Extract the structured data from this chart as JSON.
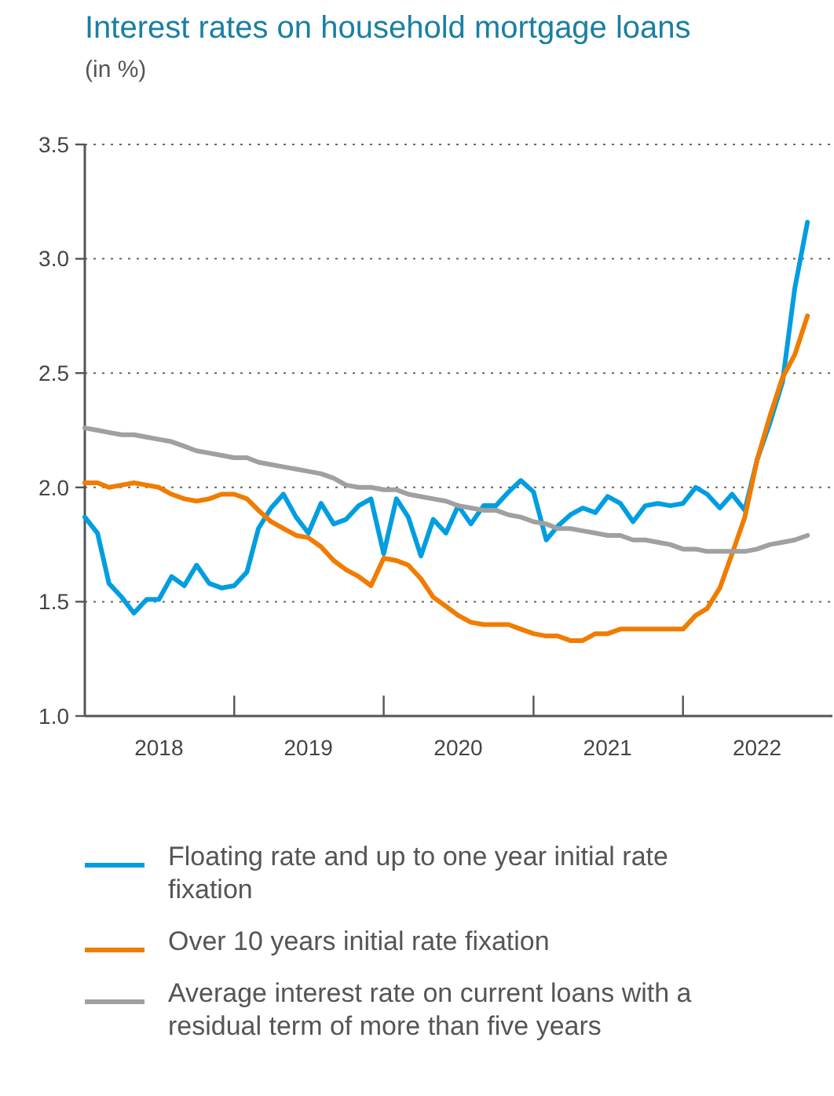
{
  "chart_data": {
    "type": "line",
    "title": "Interest rates on household mortgage loans",
    "subtitle": "(in %)",
    "x": [
      "2018-01",
      "2018-02",
      "2018-03",
      "2018-04",
      "2018-05",
      "2018-06",
      "2018-07",
      "2018-08",
      "2018-09",
      "2018-10",
      "2018-11",
      "2018-12",
      "2019-01",
      "2019-02",
      "2019-03",
      "2019-04",
      "2019-05",
      "2019-06",
      "2019-07",
      "2019-08",
      "2019-09",
      "2019-10",
      "2019-11",
      "2019-12",
      "2020-01",
      "2020-02",
      "2020-03",
      "2020-04",
      "2020-05",
      "2020-06",
      "2020-07",
      "2020-08",
      "2020-09",
      "2020-10",
      "2020-11",
      "2020-12",
      "2021-01",
      "2021-02",
      "2021-03",
      "2021-04",
      "2021-05",
      "2021-06",
      "2021-07",
      "2021-08",
      "2021-09",
      "2021-10",
      "2021-11",
      "2021-12",
      "2022-01",
      "2022-02",
      "2022-03",
      "2022-04",
      "2022-05",
      "2022-06",
      "2022-07",
      "2022-08",
      "2022-09",
      "2022-10",
      "2022-11"
    ],
    "series": [
      {
        "name": "Floating rate and up to one year initial rate fixation",
        "color": "#009ee0",
        "values": [
          1.87,
          1.8,
          1.58,
          1.52,
          1.45,
          1.51,
          1.51,
          1.61,
          1.57,
          1.66,
          1.58,
          1.56,
          1.57,
          1.63,
          1.82,
          1.91,
          1.97,
          1.87,
          1.8,
          1.93,
          1.84,
          1.86,
          1.92,
          1.95,
          1.71,
          1.95,
          1.87,
          1.7,
          1.86,
          1.8,
          1.92,
          1.84,
          1.92,
          1.92,
          1.98,
          2.03,
          1.98,
          1.77,
          1.83,
          1.88,
          1.91,
          1.89,
          1.96,
          1.93,
          1.85,
          1.92,
          1.93,
          1.92,
          1.93,
          2.0,
          1.97,
          1.91,
          1.97,
          1.9,
          2.12,
          2.28,
          2.46,
          2.87,
          3.16
        ]
      },
      {
        "name": "Over 10 years initial rate fixation",
        "color": "#f07c00",
        "values": [
          2.02,
          2.02,
          2.0,
          2.01,
          2.02,
          2.01,
          2.0,
          1.97,
          1.95,
          1.94,
          1.95,
          1.97,
          1.97,
          1.95,
          1.9,
          1.85,
          1.82,
          1.79,
          1.78,
          1.74,
          1.68,
          1.64,
          1.61,
          1.57,
          1.69,
          1.68,
          1.66,
          1.6,
          1.52,
          1.48,
          1.44,
          1.41,
          1.4,
          1.4,
          1.4,
          1.38,
          1.36,
          1.35,
          1.35,
          1.33,
          1.33,
          1.36,
          1.36,
          1.38,
          1.38,
          1.38,
          1.38,
          1.38,
          1.38,
          1.44,
          1.47,
          1.56,
          1.71,
          1.87,
          2.12,
          2.31,
          2.48,
          2.58,
          2.75
        ]
      },
      {
        "name": "Average interest rate on current loans with a residual term of more than five years",
        "color": "#a0a0a0",
        "values": [
          2.26,
          2.25,
          2.24,
          2.23,
          2.23,
          2.22,
          2.21,
          2.2,
          2.18,
          2.16,
          2.15,
          2.14,
          2.13,
          2.13,
          2.11,
          2.1,
          2.09,
          2.08,
          2.07,
          2.06,
          2.04,
          2.01,
          2.0,
          2.0,
          1.99,
          1.99,
          1.97,
          1.96,
          1.95,
          1.94,
          1.92,
          1.91,
          1.9,
          1.9,
          1.88,
          1.87,
          1.85,
          1.84,
          1.82,
          1.82,
          1.81,
          1.8,
          1.79,
          1.79,
          1.77,
          1.77,
          1.76,
          1.75,
          1.73,
          1.73,
          1.72,
          1.72,
          1.72,
          1.72,
          1.73,
          1.75,
          1.76,
          1.77,
          1.79
        ]
      }
    ],
    "xlim": [
      "2018-01",
      "2023-01"
    ],
    "xticks": [
      {
        "value": "2018-07",
        "label": "2018"
      },
      {
        "value": "2019-01",
        "label": null
      },
      {
        "value": "2019-07",
        "label": "2019"
      },
      {
        "value": "2020-01",
        "label": null
      },
      {
        "value": "2020-07",
        "label": "2020"
      },
      {
        "value": "2021-01",
        "label": null
      },
      {
        "value": "2021-07",
        "label": "2021"
      },
      {
        "value": "2022-01",
        "label": null
      },
      {
        "value": "2022-07",
        "label": "2022"
      }
    ],
    "ylim": [
      1.0,
      3.5
    ],
    "yticks": [
      {
        "value": 1.0,
        "label": "1.0"
      },
      {
        "value": 1.5,
        "label": "1.5"
      },
      {
        "value": 2.0,
        "label": "2.0"
      },
      {
        "value": 2.5,
        "label": "2.5"
      },
      {
        "value": 3.0,
        "label": "3.0"
      },
      {
        "value": 3.5,
        "label": "3.5"
      }
    ],
    "grid": "y",
    "legend": "bottom",
    "marker": "none",
    "line_style": "solid"
  }
}
